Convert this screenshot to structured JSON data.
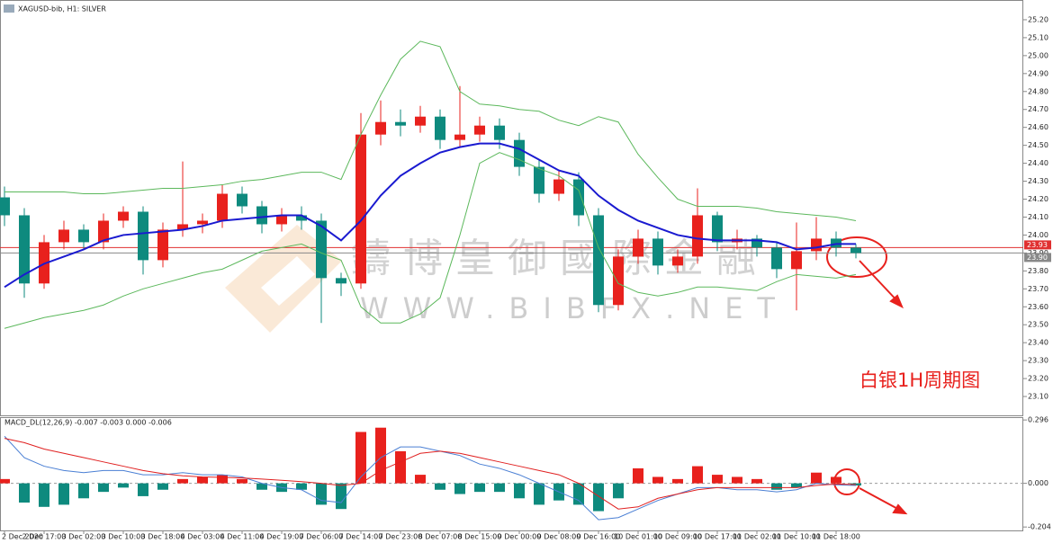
{
  "chart_data": [
    {
      "type": "candlestick",
      "title": "XAGUSD-bib, H1: SILVER",
      "annotation": "白银1H周期图",
      "watermark": [
        "鑄 博 皇 御 國 際 金 融",
        "WWW.BIBFX.NET"
      ],
      "colors": {
        "up": "#e8211d",
        "down": "#0e8a7e"
      },
      "open": [
        24.21,
        24.11,
        23.73,
        23.96,
        24.03,
        23.96,
        24.08,
        24.13,
        23.86,
        24.03,
        24.06,
        24.08,
        24.23,
        24.16,
        24.06,
        24.11,
        24.08,
        23.76,
        23.73,
        24.56,
        24.63,
        24.61,
        24.66,
        24.53,
        24.56,
        24.61,
        24.53,
        24.38,
        24.23,
        24.31,
        24.11,
        23.61,
        23.88,
        23.98,
        23.83,
        23.88,
        24.11,
        23.96,
        23.98,
        23.93,
        23.81,
        23.91,
        23.98,
        23.93
      ],
      "high": [
        24.27,
        24.15,
        24.0,
        24.08,
        24.06,
        24.12,
        24.16,
        24.16,
        24.07,
        24.41,
        24.12,
        24.28,
        24.27,
        24.19,
        24.15,
        24.16,
        24.12,
        23.79,
        24.68,
        24.75,
        24.7,
        24.72,
        24.7,
        24.83,
        24.66,
        24.65,
        24.57,
        24.42,
        24.36,
        24.35,
        24.15,
        23.92,
        24.03,
        24.02,
        23.92,
        24.26,
        24.13,
        24.03,
        24.0,
        23.96,
        24.07,
        24.1,
        24.02,
        23.95
      ],
      "low": [
        24.05,
        23.65,
        23.7,
        23.92,
        23.92,
        23.92,
        24.04,
        23.78,
        23.82,
        23.99,
        24.01,
        24.04,
        24.12,
        24.01,
        24.02,
        24.03,
        23.51,
        23.66,
        23.7,
        24.5,
        24.55,
        24.57,
        24.48,
        24.49,
        24.52,
        24.48,
        24.33,
        24.18,
        24.19,
        24.05,
        23.57,
        23.58,
        23.84,
        23.78,
        23.79,
        23.84,
        23.91,
        23.92,
        23.88,
        23.76,
        23.58,
        23.86,
        23.88,
        23.87
      ],
      "close": [
        24.11,
        23.73,
        23.96,
        24.03,
        23.96,
        24.08,
        24.13,
        23.86,
        24.03,
        24.06,
        24.08,
        24.23,
        24.16,
        24.06,
        24.11,
        24.08,
        23.76,
        23.73,
        24.56,
        24.63,
        24.61,
        24.66,
        24.53,
        24.56,
        24.61,
        24.53,
        24.38,
        24.23,
        24.31,
        24.11,
        23.61,
        23.88,
        23.98,
        23.83,
        23.88,
        24.11,
        23.96,
        23.98,
        23.93,
        23.81,
        23.91,
        23.98,
        23.93,
        23.9
      ],
      "series": [
        {
          "color": "#1a1ad0",
          "values": [
            23.71,
            23.78,
            23.84,
            23.88,
            23.92,
            23.97,
            24.0,
            24.01,
            24.02,
            24.03,
            24.05,
            24.08,
            24.09,
            24.1,
            24.11,
            24.11,
            24.05,
            23.97,
            24.08,
            24.22,
            24.33,
            24.4,
            24.46,
            24.49,
            24.51,
            24.51,
            24.48,
            24.42,
            24.36,
            24.33,
            24.22,
            24.14,
            24.08,
            24.04,
            24.0,
            23.98,
            23.97,
            23.97,
            23.97,
            23.96,
            23.92,
            23.93,
            23.95,
            23.95
          ]
        },
        {
          "color": "#5cb85c",
          "values": [
            24.24,
            24.24,
            24.24,
            24.24,
            24.23,
            24.23,
            24.24,
            24.25,
            24.26,
            24.26,
            24.27,
            24.28,
            24.3,
            24.31,
            24.33,
            24.35,
            24.35,
            24.31,
            24.56,
            24.78,
            24.98,
            25.08,
            25.05,
            24.8,
            24.73,
            24.72,
            24.7,
            24.69,
            24.64,
            24.61,
            24.66,
            24.63,
            24.45,
            24.32,
            24.2,
            24.16,
            24.16,
            24.16,
            24.15,
            24.13,
            24.12,
            24.11,
            24.1,
            24.08
          ]
        },
        {
          "color": "#5cb85c",
          "values": [
            23.48,
            23.51,
            23.54,
            23.56,
            23.58,
            23.61,
            23.66,
            23.7,
            23.73,
            23.76,
            23.79,
            23.81,
            23.86,
            23.91,
            23.93,
            23.95,
            23.9,
            23.86,
            23.6,
            23.51,
            23.51,
            23.56,
            23.65,
            24.0,
            24.4,
            24.46,
            24.42,
            24.37,
            24.33,
            24.25,
            23.93,
            23.73,
            23.68,
            23.66,
            23.68,
            23.71,
            23.71,
            23.7,
            23.69,
            23.74,
            23.78,
            23.77,
            23.76,
            23.78
          ]
        }
      ],
      "price_lines": [
        {
          "value": 23.93,
          "label": "23.93",
          "color": "#e03030"
        },
        {
          "value": 23.9,
          "label": "23.90",
          "color": "#888888"
        }
      ],
      "ylim": [
        23.0,
        25.3
      ],
      "yticks": [
        {
          "value": 23.1,
          "label": "23.10"
        },
        {
          "value": 23.2,
          "label": "23.20"
        },
        {
          "value": 23.3,
          "label": "23.30"
        },
        {
          "value": 23.4,
          "label": "23.40"
        },
        {
          "value": 23.5,
          "label": "23.50"
        },
        {
          "value": 23.6,
          "label": "23.60"
        },
        {
          "value": 23.7,
          "label": "23.70"
        },
        {
          "value": 23.8,
          "label": "23.80"
        },
        {
          "value": 23.9,
          "label": "23.90"
        },
        {
          "value": 24.0,
          "label": "24.00"
        },
        {
          "value": 24.1,
          "label": "24.10"
        },
        {
          "value": 24.2,
          "label": "24.20"
        },
        {
          "value": 24.3,
          "label": "24.30"
        },
        {
          "value": 24.4,
          "label": "24.40"
        },
        {
          "value": 24.5,
          "label": "24.50"
        },
        {
          "value": 24.6,
          "label": "24.60"
        },
        {
          "value": 24.7,
          "label": "24.70"
        },
        {
          "value": 24.8,
          "label": "24.80"
        },
        {
          "value": 24.9,
          "label": "24.90"
        },
        {
          "value": 25.0,
          "label": "25.00"
        },
        {
          "value": 25.1,
          "label": "25.10"
        },
        {
          "value": 25.2,
          "label": "25.20"
        }
      ]
    },
    {
      "type": "macd",
      "title": "MACD_DL(12,26,9) -0.007 -0.003 0.000 -0.006",
      "categories": [
        "2 Dec 2020",
        null,
        "2 Dec 17:00",
        null,
        "3 Dec 02:00",
        null,
        "3 Dec 10:00",
        null,
        "3 Dec 18:00",
        null,
        "4 Dec 03:00",
        null,
        "4 Dec 11:00",
        null,
        "4 Dec 19:00",
        null,
        "7 Dec 06:00",
        null,
        "7 Dec 14:00",
        null,
        "7 Dec 23:00",
        null,
        "8 Dec 07:00",
        null,
        "8 Dec 15:00",
        null,
        "9 Dec 00:00",
        null,
        "9 Dec 08:00",
        null,
        "9 Dec 16:00",
        null,
        "10 Dec 01:00",
        null,
        "10 Dec 09:00",
        null,
        "10 Dec 17:00",
        null,
        "11 Dec 02:00",
        null,
        "11 Dec 10:00",
        null,
        "11 Dec 18:00",
        null
      ],
      "colors": {
        "up": "#e8211d",
        "down": "#0e8a7e"
      },
      "values": [
        0.02,
        -0.09,
        -0.11,
        -0.1,
        -0.07,
        -0.04,
        -0.02,
        -0.06,
        -0.03,
        0.02,
        0.03,
        0.04,
        0.02,
        -0.03,
        -0.04,
        -0.03,
        -0.1,
        -0.12,
        0.24,
        0.26,
        0.15,
        0.04,
        -0.03,
        -0.05,
        -0.04,
        -0.04,
        -0.07,
        -0.1,
        -0.08,
        -0.1,
        -0.13,
        -0.07,
        0.07,
        0.03,
        0.02,
        0.08,
        0.04,
        0.03,
        0.02,
        -0.03,
        -0.02,
        0.05,
        0.03,
        -0.01
      ],
      "series": [
        {
          "color": "#4a7fd4",
          "values": [
            0.22,
            0.12,
            0.08,
            0.06,
            0.05,
            0.06,
            0.06,
            0.04,
            0.04,
            0.05,
            0.04,
            0.04,
            0.03,
            0.0,
            -0.02,
            -0.03,
            -0.08,
            -0.09,
            0.03,
            0.12,
            0.17,
            0.17,
            0.15,
            0.13,
            0.09,
            0.07,
            0.04,
            0.0,
            -0.04,
            -0.08,
            -0.17,
            -0.16,
            -0.12,
            -0.08,
            -0.05,
            -0.02,
            -0.02,
            -0.03,
            -0.03,
            -0.04,
            -0.03,
            0.0,
            -0.007,
            -0.01
          ]
        },
        {
          "color": "#e02020",
          "values": [
            0.21,
            0.19,
            0.16,
            0.14,
            0.12,
            0.1,
            0.08,
            0.06,
            0.045,
            0.035,
            0.03,
            0.028,
            0.025,
            0.02,
            0.014,
            0.008,
            0.0,
            -0.01,
            0.0,
            0.06,
            0.1,
            0.14,
            0.15,
            0.14,
            0.12,
            0.1,
            0.08,
            0.06,
            0.04,
            0.0,
            -0.06,
            -0.12,
            -0.11,
            -0.07,
            -0.05,
            -0.03,
            -0.02,
            -0.02,
            -0.02,
            -0.02,
            -0.02,
            -0.01,
            -0.003,
            -0.006
          ]
        }
      ],
      "ylim": [
        -0.22,
        0.305
      ],
      "yticks": [
        0.296,
        {
          "value": 0,
          "label": "0.000"
        },
        -0.204
      ]
    }
  ]
}
